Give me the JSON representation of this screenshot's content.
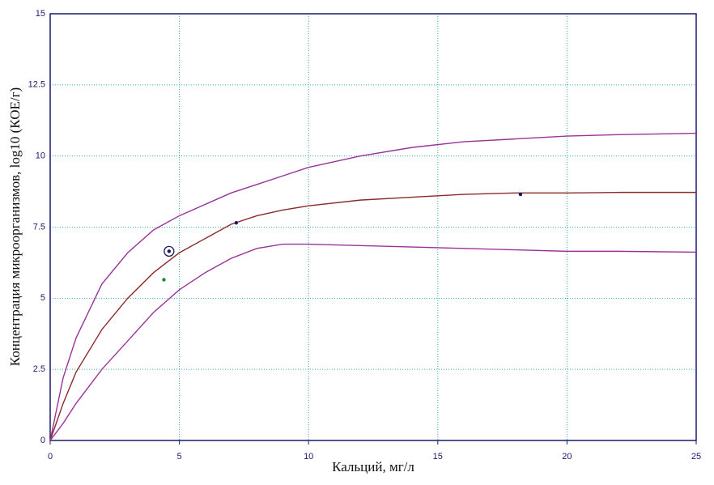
{
  "chart_data": {
    "type": "line",
    "x_label": "Кальций, мг/л",
    "y_label": "Концентрация микроорганизмов, log10 (КОЕ/г)",
    "x": [
      0,
      0.5,
      1,
      2,
      3,
      4,
      5,
      6,
      7,
      8,
      9,
      10,
      12,
      14,
      16,
      18,
      20,
      22,
      25
    ],
    "series": [
      {
        "color": "#993399",
        "values": [
          0,
          2.2,
          3.6,
          5.5,
          6.6,
          7.4,
          7.9,
          8.3,
          8.7,
          9.0,
          9.3,
          9.6,
          10.0,
          10.3,
          10.5,
          10.6,
          10.7,
          10.75,
          10.8
        ]
      },
      {
        "color": "#8b2a2a",
        "values": [
          0,
          1.3,
          2.4,
          3.9,
          5.0,
          5.9,
          6.6,
          7.1,
          7.6,
          7.9,
          8.1,
          8.25,
          8.45,
          8.55,
          8.65,
          8.7,
          8.7,
          8.72,
          8.72
        ]
      },
      {
        "color": "#993399",
        "values": [
          0,
          0.6,
          1.3,
          2.5,
          3.5,
          4.5,
          5.3,
          5.9,
          6.4,
          6.75,
          6.9,
          6.9,
          6.85,
          6.8,
          6.75,
          6.7,
          6.65,
          6.65,
          6.62
        ]
      }
    ],
    "points": [
      {
        "x": 4.6,
        "y": 6.65,
        "color": "#1a1a5e",
        "marker": "circled"
      },
      {
        "x": 4.4,
        "y": 5.65,
        "color": "#1a8a1a",
        "marker": "dot"
      },
      {
        "x": 7.2,
        "y": 7.65,
        "color": "#1a1a5e",
        "marker": "dot"
      },
      {
        "x": 18.2,
        "y": 8.65,
        "color": "#1a1a5e",
        "marker": "dot"
      }
    ],
    "xlim": [
      0,
      25
    ],
    "xticks": [
      0,
      5,
      10,
      15,
      20,
      25
    ],
    "ylim": [
      0,
      15
    ],
    "yticks": [
      0,
      2.5,
      5,
      7.5,
      10,
      12.5,
      15
    ],
    "grid": true,
    "grid_color": "#3aa8b0",
    "axis_color": "#1a1a6e"
  }
}
